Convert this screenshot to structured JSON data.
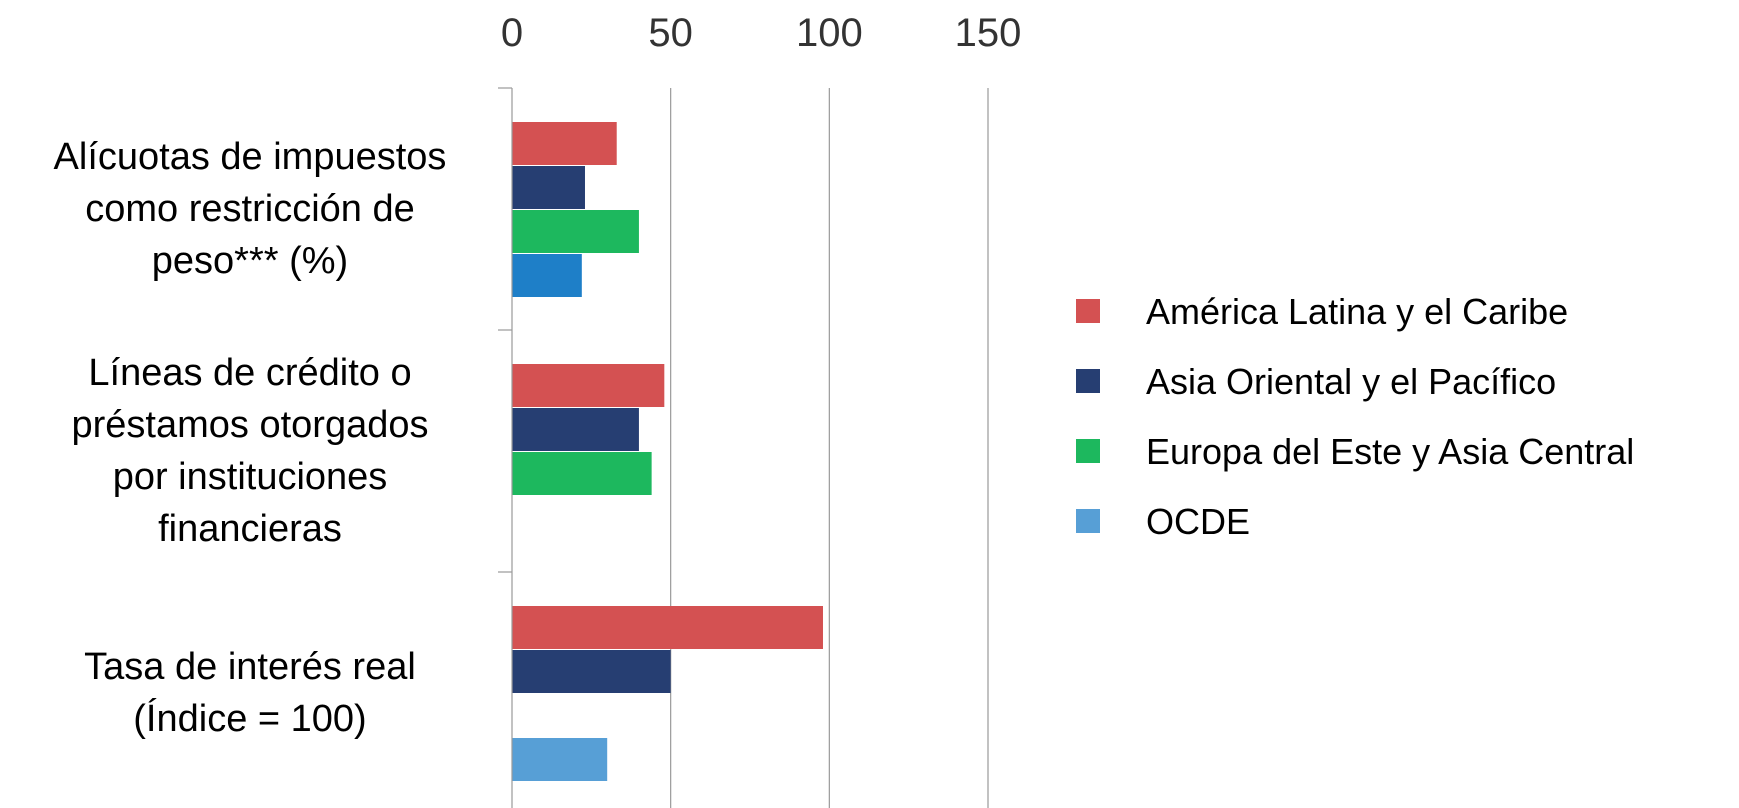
{
  "chart_data": {
    "type": "bar",
    "orientation": "horizontal",
    "title": "",
    "xlabel": "",
    "ylabel": "",
    "xlim": [
      0,
      150
    ],
    "xticks": [
      "0",
      "50",
      "100",
      "150"
    ],
    "x_axis_position": "top",
    "grid": true,
    "legend_position": "right",
    "categories": [
      [
        "Alícuotas de impuestos",
        "como restricción de",
        "peso*** (%)"
      ],
      [
        "Líneas de crédito o",
        "préstamos otorgados",
        "por instituciones",
        "financieras"
      ],
      [
        "Tasa de interés real",
        "(Índice = 100)"
      ]
    ],
    "series": [
      {
        "name": "América Latina y el Caribe",
        "color": "#d45152",
        "values": [
          33,
          48,
          98
        ]
      },
      {
        "name": "Asia Oriental y el Pacífico",
        "color": "#263e72",
        "values": [
          23,
          40,
          50
        ]
      },
      {
        "name": "Europa del Este y Asia Central",
        "color": "#1db85e",
        "values": [
          40,
          44,
          null
        ]
      },
      {
        "name": "OCDE",
        "color": "#579fd6",
        "legend_color": "#579fd6",
        "bar_colors": [
          "#1e7fc8",
          null,
          "#579fd6"
        ],
        "values": [
          22,
          null,
          30
        ]
      }
    ]
  }
}
